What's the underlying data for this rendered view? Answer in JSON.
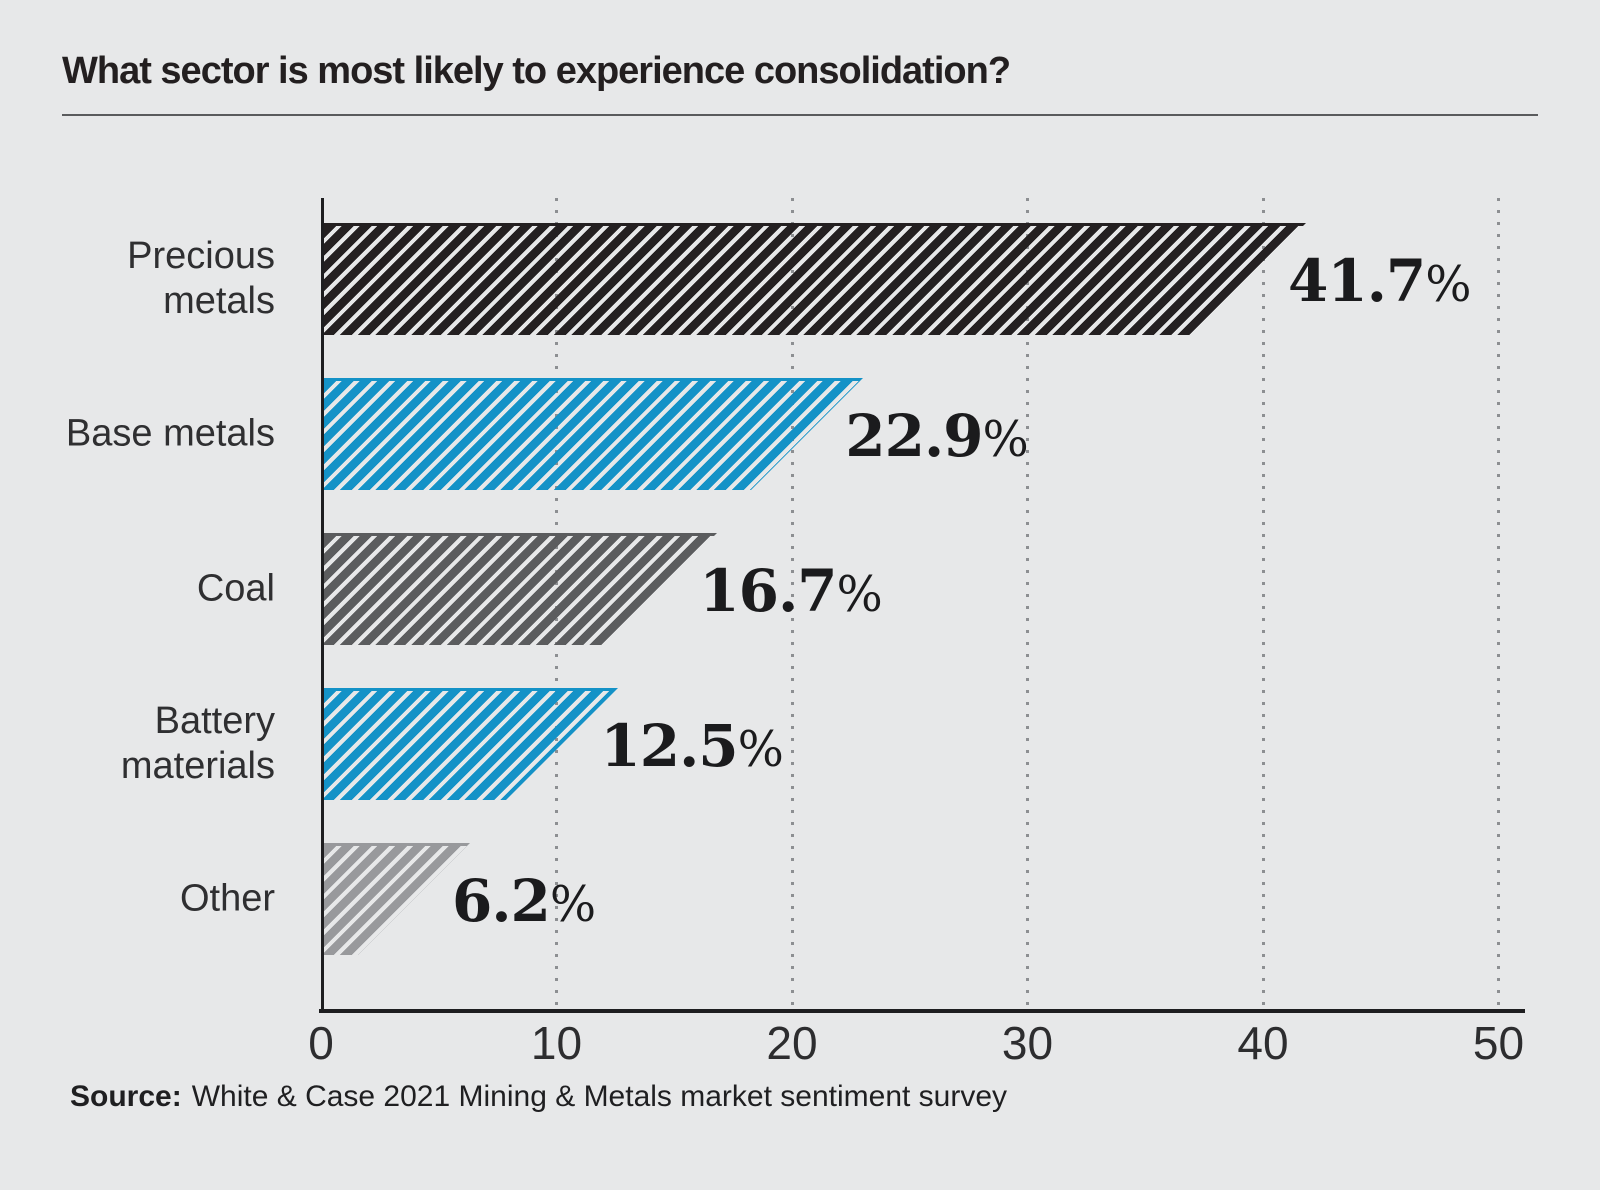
{
  "title": "What sector is most likely to experience consolidation?",
  "source": {
    "label": "Source:",
    "text": "White & Case 2021 Mining & Metals market sentiment survey"
  },
  "colors": {
    "background": "#e7e8e9",
    "axis": "#1e1e20",
    "gridline": "#8d8f92",
    "title_text": "#231f20",
    "label_text": "#2f2f31",
    "value_text": "#1b1b1d",
    "accent_blue": "#1492c7",
    "dark_bar": "#242021",
    "coal_gray": "#5b5c5e",
    "other_gray": "#98999c"
  },
  "chart_data": {
    "type": "bar",
    "orientation": "horizontal",
    "title": "What sector is most likely to experience consolidation?",
    "categories": [
      "Precious metals",
      "Base metals",
      "Coal",
      "Battery materials",
      "Other"
    ],
    "category_lines": [
      [
        "Precious",
        "metals"
      ],
      [
        "Base metals"
      ],
      [
        "Coal"
      ],
      [
        "Battery",
        "materials"
      ],
      [
        "Other"
      ]
    ],
    "values": [
      41.7,
      22.9,
      16.7,
      12.5,
      6.2
    ],
    "value_labels": [
      "41.7%",
      "22.9%",
      "16.7%",
      "12.5%",
      "6.2%"
    ],
    "bar_colors": [
      "#242021",
      "#1492c7",
      "#5b5c5e",
      "#1492c7",
      "#98999c"
    ],
    "bar_pattern": "diagonal-hatch-45deg",
    "xlim": [
      0,
      50
    ],
    "x_ticks": [
      "0",
      "10",
      "20",
      "30",
      "40",
      "50"
    ],
    "grid": "vertical-dotted-at-ticks",
    "legend": "none",
    "xlabel": "",
    "ylabel": ""
  }
}
